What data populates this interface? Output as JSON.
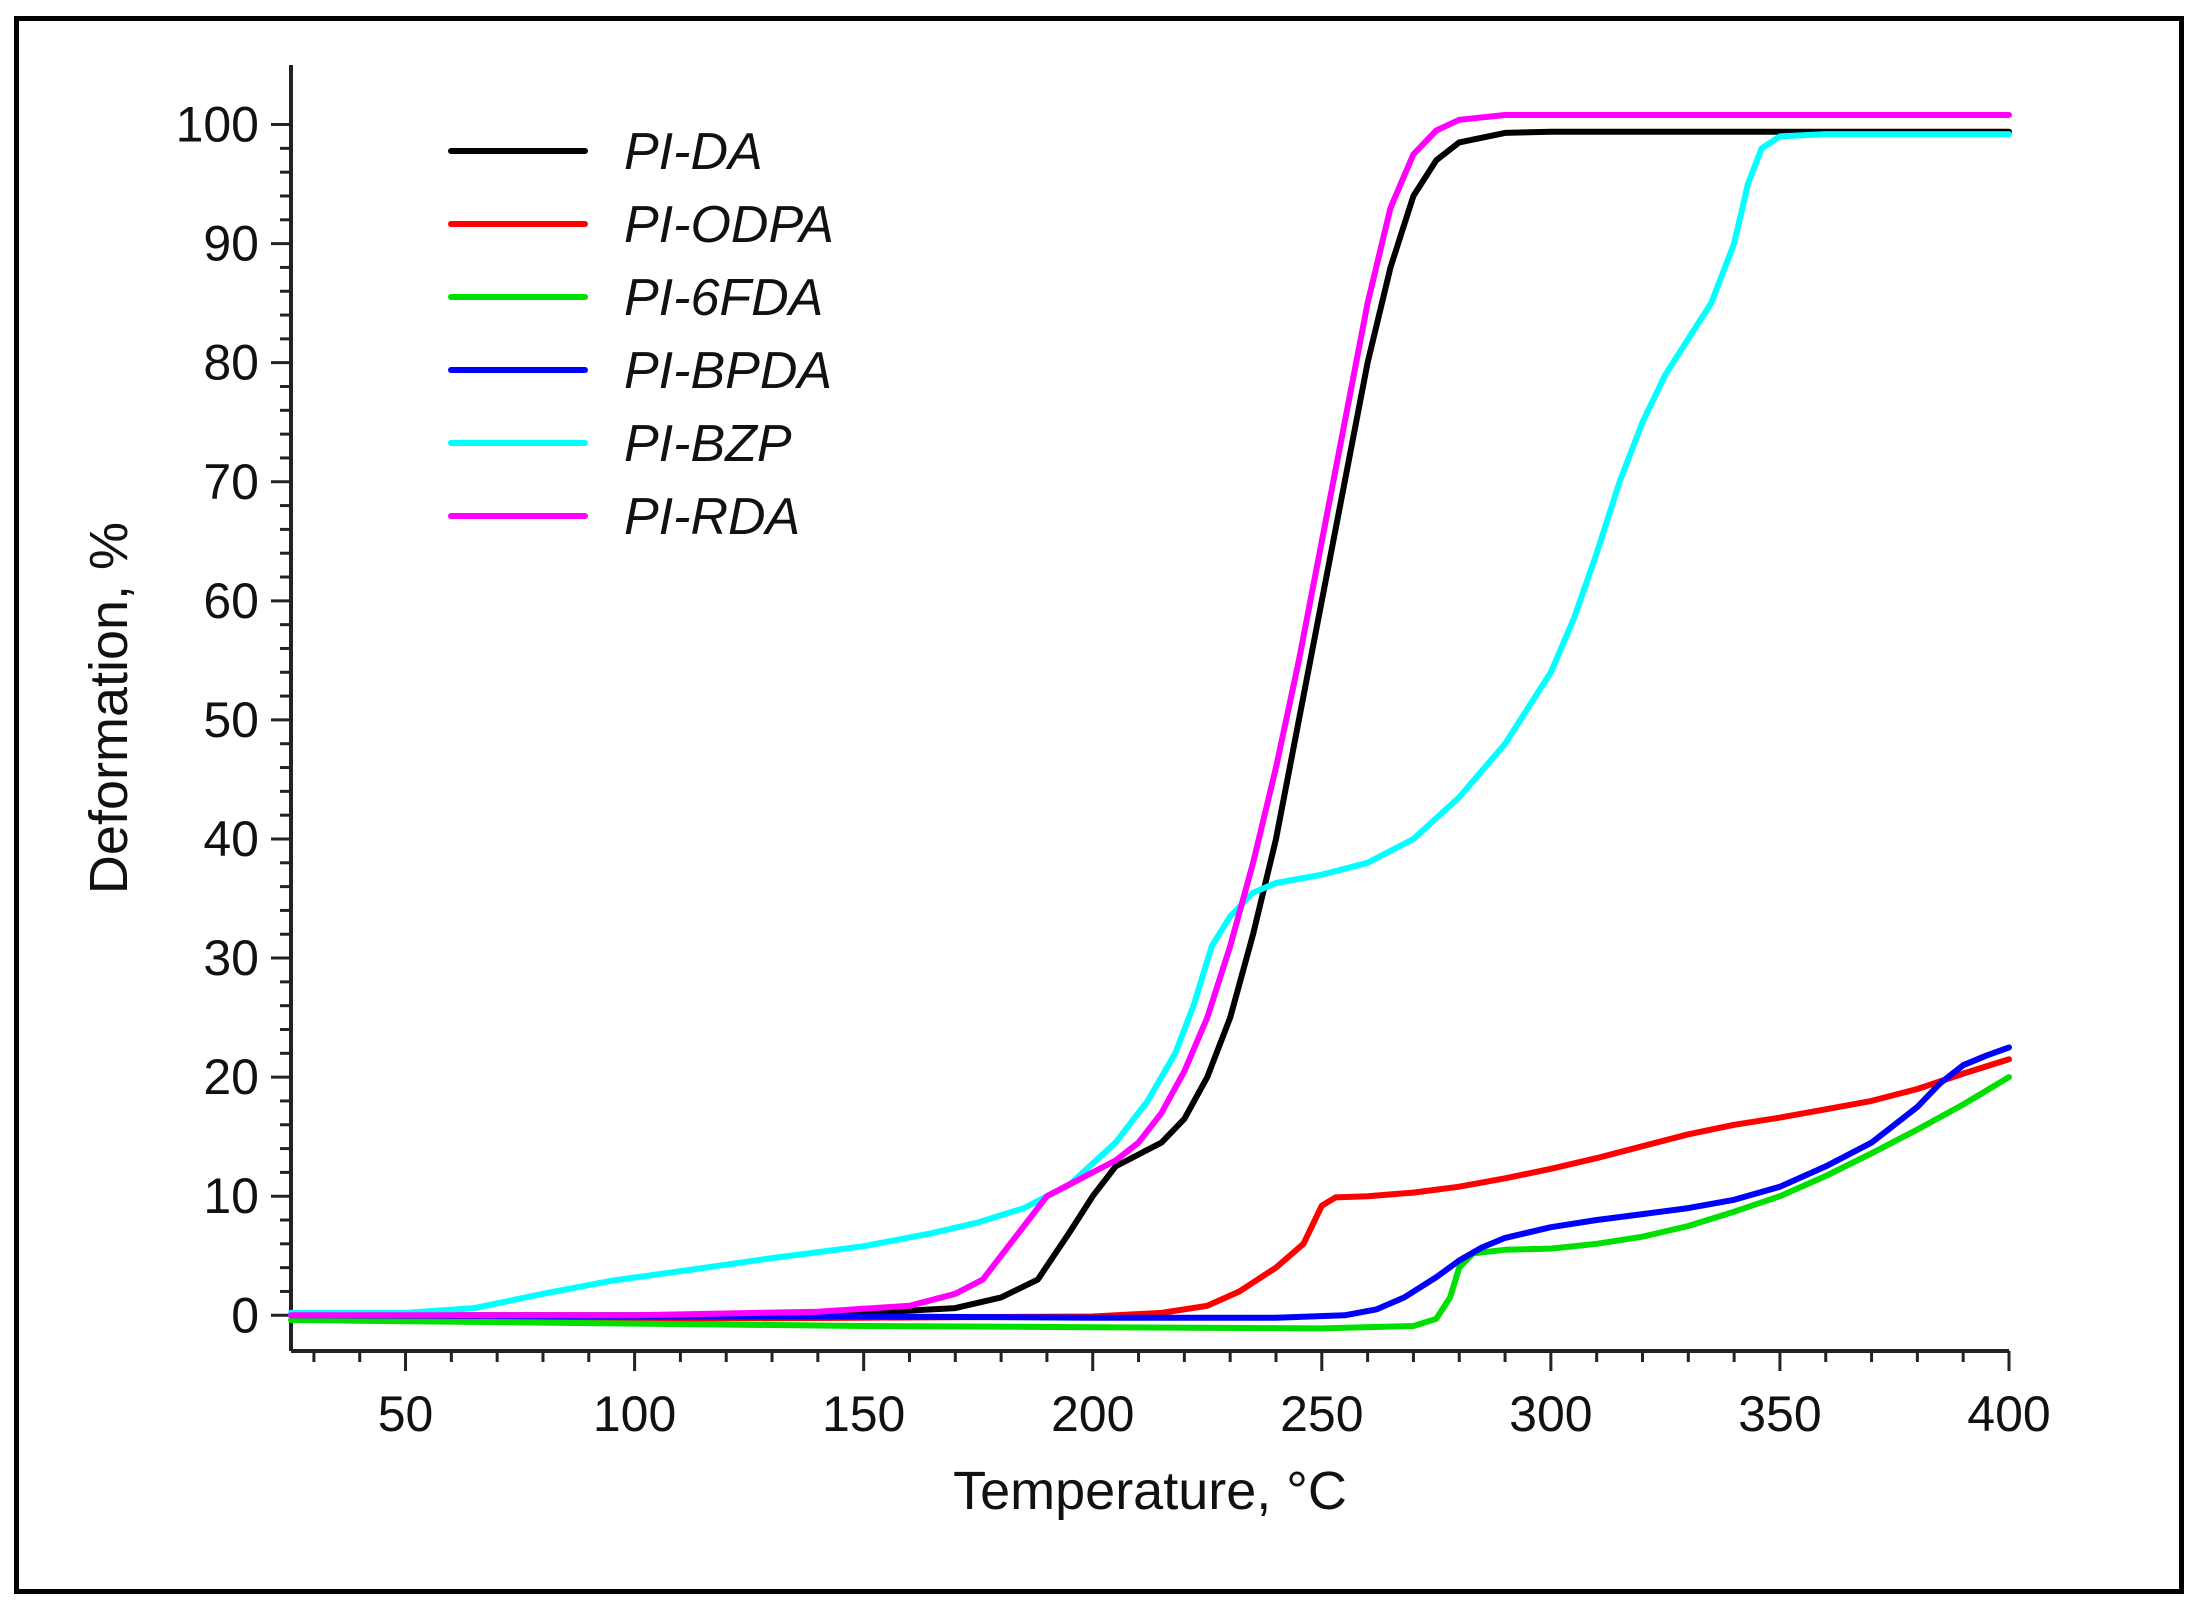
{
  "chart_data": {
    "type": "line",
    "title": "",
    "xlabel": "Temperature, °C",
    "ylabel": "Deformation, %",
    "xlim": [
      25,
      400
    ],
    "ylim": [
      -3,
      105
    ],
    "xticks": [
      50,
      100,
      150,
      200,
      250,
      300,
      350,
      400
    ],
    "xtick_labels": [
      "50",
      "100",
      "150",
      "200",
      "250",
      "300",
      "350",
      "400"
    ],
    "yticks": [
      0,
      10,
      20,
      30,
      40,
      50,
      60,
      70,
      80,
      90,
      100
    ],
    "ytick_labels": [
      "0",
      "10",
      "20",
      "30",
      "40",
      "50",
      "60",
      "70",
      "80",
      "90",
      "100"
    ],
    "grid": false,
    "legend_position": "top-left",
    "series": [
      {
        "name": "PI-DA",
        "color": "#000000",
        "points": [
          [
            25,
            0
          ],
          [
            100,
            0
          ],
          [
            150,
            0.2
          ],
          [
            170,
            0.6
          ],
          [
            180,
            1.5
          ],
          [
            188,
            3
          ],
          [
            195,
            7
          ],
          [
            200,
            10
          ],
          [
            205,
            12.5
          ],
          [
            210,
            13.5
          ],
          [
            215,
            14.5
          ],
          [
            220,
            16.5
          ],
          [
            225,
            20
          ],
          [
            230,
            25
          ],
          [
            235,
            32
          ],
          [
            240,
            40
          ],
          [
            245,
            50
          ],
          [
            250,
            60
          ],
          [
            255,
            70
          ],
          [
            260,
            80
          ],
          [
            265,
            88
          ],
          [
            270,
            94
          ],
          [
            275,
            97
          ],
          [
            280,
            98.5
          ],
          [
            290,
            99.3
          ],
          [
            300,
            99.4
          ],
          [
            400,
            99.4
          ]
        ]
      },
      {
        "name": "PI-ODPA",
        "color": "#ff0000",
        "points": [
          [
            25,
            0
          ],
          [
            100,
            -0.3
          ],
          [
            150,
            -0.2
          ],
          [
            200,
            -0.1
          ],
          [
            215,
            0.2
          ],
          [
            225,
            0.8
          ],
          [
            232,
            2
          ],
          [
            240,
            4
          ],
          [
            246,
            6
          ],
          [
            250,
            9.2
          ],
          [
            253,
            9.9
          ],
          [
            260,
            10
          ],
          [
            270,
            10.3
          ],
          [
            280,
            10.8
          ],
          [
            290,
            11.5
          ],
          [
            300,
            12.3
          ],
          [
            310,
            13.2
          ],
          [
            320,
            14.2
          ],
          [
            330,
            15.2
          ],
          [
            340,
            16
          ],
          [
            350,
            16.6
          ],
          [
            360,
            17.3
          ],
          [
            370,
            18
          ],
          [
            380,
            19
          ],
          [
            390,
            20.3
          ],
          [
            400,
            21.5
          ]
        ]
      },
      {
        "name": "PI-6FDA",
        "color": "#00e000",
        "points": [
          [
            25,
            -0.4
          ],
          [
            100,
            -0.7
          ],
          [
            150,
            -0.9
          ],
          [
            200,
            -1
          ],
          [
            250,
            -1.1
          ],
          [
            270,
            -0.9
          ],
          [
            275,
            -0.3
          ],
          [
            278,
            1.5
          ],
          [
            280,
            4
          ],
          [
            283,
            5.2
          ],
          [
            290,
            5.5
          ],
          [
            300,
            5.6
          ],
          [
            310,
            6
          ],
          [
            320,
            6.6
          ],
          [
            330,
            7.5
          ],
          [
            340,
            8.7
          ],
          [
            350,
            10
          ],
          [
            360,
            11.7
          ],
          [
            370,
            13.6
          ],
          [
            380,
            15.6
          ],
          [
            390,
            17.7
          ],
          [
            400,
            20
          ]
        ]
      },
      {
        "name": "PI-BPDA",
        "color": "#0000ff",
        "points": [
          [
            25,
            0
          ],
          [
            100,
            -0.1
          ],
          [
            150,
            -0.1
          ],
          [
            200,
            -0.2
          ],
          [
            240,
            -0.2
          ],
          [
            255,
            0
          ],
          [
            262,
            0.5
          ],
          [
            268,
            1.5
          ],
          [
            275,
            3.2
          ],
          [
            280,
            4.6
          ],
          [
            285,
            5.7
          ],
          [
            290,
            6.5
          ],
          [
            300,
            7.4
          ],
          [
            310,
            8
          ],
          [
            320,
            8.5
          ],
          [
            330,
            9
          ],
          [
            340,
            9.7
          ],
          [
            350,
            10.8
          ],
          [
            360,
            12.5
          ],
          [
            370,
            14.5
          ],
          [
            380,
            17.5
          ],
          [
            385,
            19.5
          ],
          [
            390,
            21
          ],
          [
            395,
            21.8
          ],
          [
            400,
            22.5
          ]
        ]
      },
      {
        "name": "PI-BZP",
        "color": "#00ffff",
        "points": [
          [
            25,
            0.2
          ],
          [
            50,
            0.2
          ],
          [
            65,
            0.6
          ],
          [
            80,
            1.8
          ],
          [
            95,
            2.9
          ],
          [
            110,
            3.7
          ],
          [
            130,
            4.8
          ],
          [
            150,
            5.8
          ],
          [
            165,
            6.9
          ],
          [
            175,
            7.8
          ],
          [
            185,
            9
          ],
          [
            195,
            11
          ],
          [
            205,
            14.5
          ],
          [
            212,
            18
          ],
          [
            218,
            22
          ],
          [
            222,
            26
          ],
          [
            226,
            31
          ],
          [
            230,
            33.5
          ],
          [
            235,
            35.5
          ],
          [
            240,
            36.3
          ],
          [
            250,
            37
          ],
          [
            260,
            38
          ],
          [
            270,
            40
          ],
          [
            280,
            43.5
          ],
          [
            290,
            48
          ],
          [
            300,
            54
          ],
          [
            305,
            58.5
          ],
          [
            310,
            64
          ],
          [
            315,
            70
          ],
          [
            320,
            75
          ],
          [
            325,
            79
          ],
          [
            330,
            82
          ],
          [
            335,
            85
          ],
          [
            340,
            90
          ],
          [
            343,
            95
          ],
          [
            346,
            98
          ],
          [
            350,
            99
          ],
          [
            360,
            99.2
          ],
          [
            400,
            99.2
          ]
        ]
      },
      {
        "name": "PI-RDA",
        "color": "#ff00ff",
        "points": [
          [
            25,
            0
          ],
          [
            100,
            0
          ],
          [
            140,
            0.3
          ],
          [
            160,
            0.8
          ],
          [
            170,
            1.8
          ],
          [
            176,
            3
          ],
          [
            180,
            5
          ],
          [
            185,
            7.5
          ],
          [
            190,
            10
          ],
          [
            195,
            11
          ],
          [
            200,
            12
          ],
          [
            205,
            13
          ],
          [
            210,
            14.5
          ],
          [
            215,
            17
          ],
          [
            220,
            20.5
          ],
          [
            225,
            25
          ],
          [
            230,
            31
          ],
          [
            235,
            38
          ],
          [
            240,
            46
          ],
          [
            245,
            55
          ],
          [
            250,
            65
          ],
          [
            255,
            75
          ],
          [
            260,
            85
          ],
          [
            265,
            93
          ],
          [
            270,
            97.5
          ],
          [
            275,
            99.5
          ],
          [
            280,
            100.4
          ],
          [
            290,
            100.8
          ],
          [
            400,
            100.8
          ]
        ]
      }
    ]
  }
}
